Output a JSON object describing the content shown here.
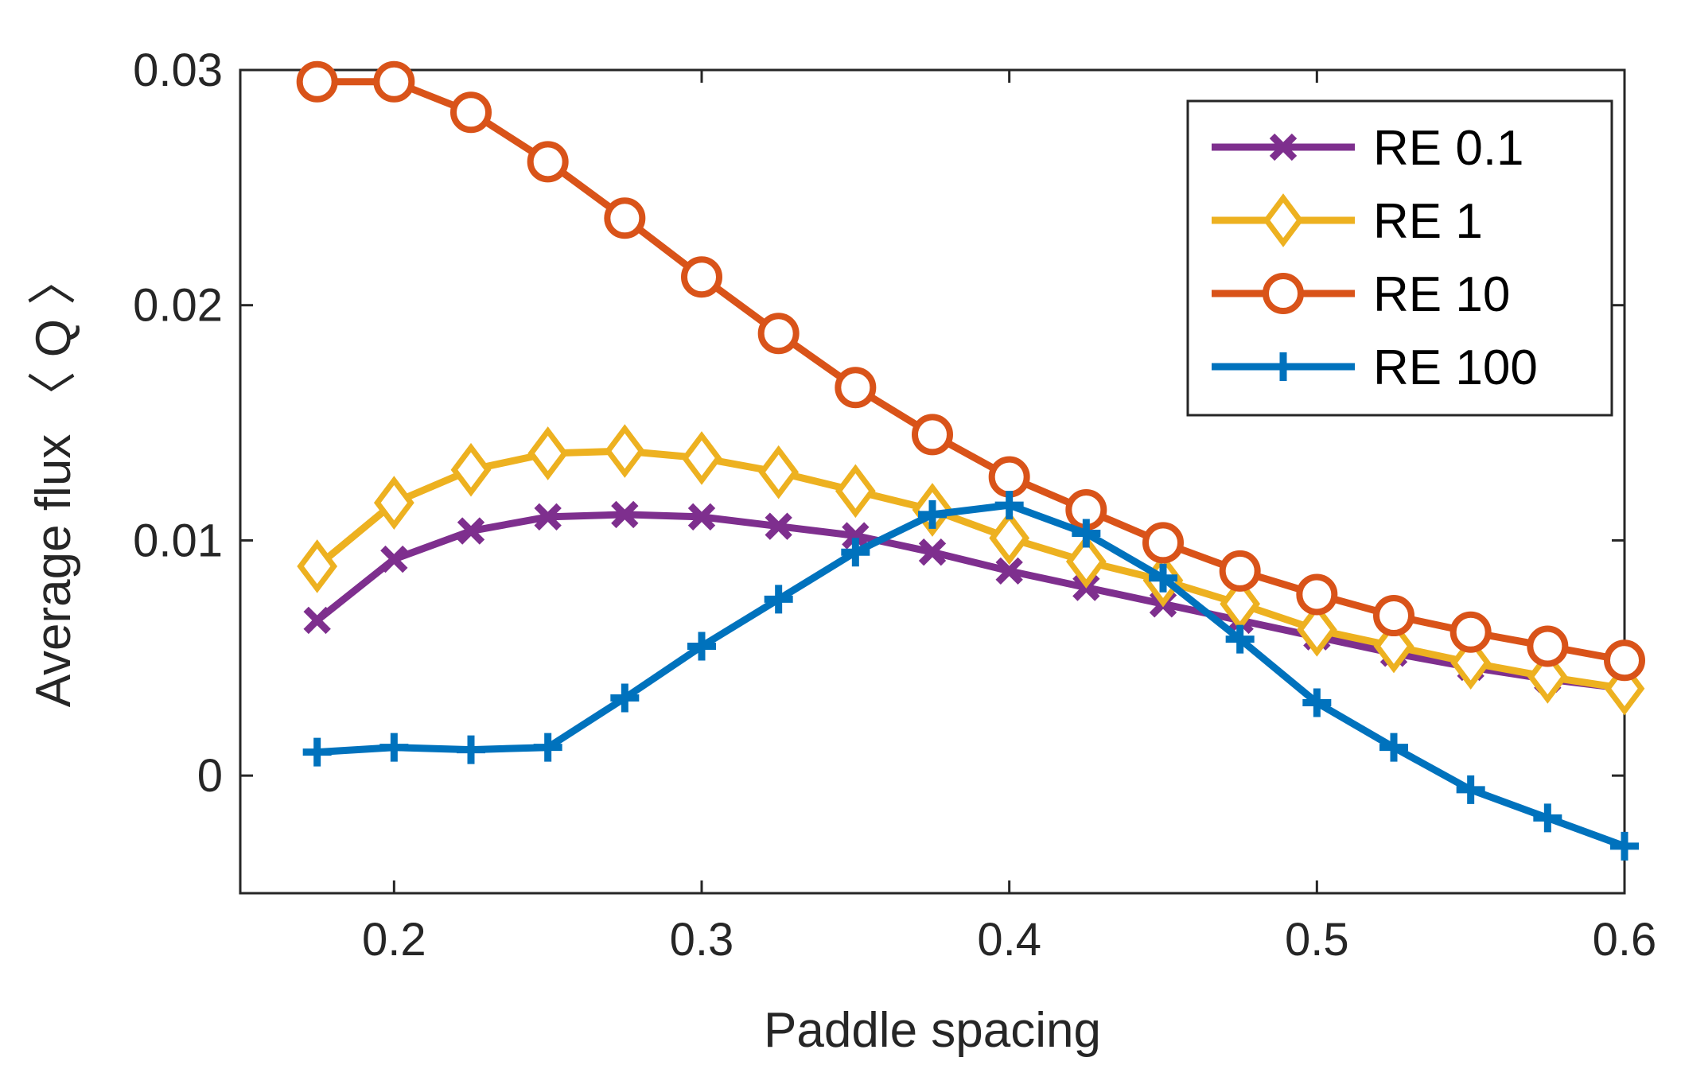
{
  "chart_data": {
    "type": "line",
    "title": "",
    "xlabel": "Paddle spacing",
    "ylabel": "Average flux 〈 Q 〉",
    "xlim": [
      0.15,
      0.6
    ],
    "ylim": [
      -0.005,
      0.03
    ],
    "xticks": [
      0.2,
      0.3,
      0.4,
      0.5,
      0.6
    ],
    "xtick_labels": [
      "0.2",
      "0.3",
      "0.4",
      "0.5",
      "0.6"
    ],
    "yticks": [
      0,
      0.01,
      0.02,
      0.03
    ],
    "ytick_labels": [
      "0",
      "0.01",
      "0.02",
      "0.03"
    ],
    "grid": false,
    "legend_position": "top-right",
    "x": [
      0.175,
      0.2,
      0.225,
      0.25,
      0.275,
      0.3,
      0.325,
      0.35,
      0.375,
      0.4,
      0.425,
      0.45,
      0.475,
      0.5,
      0.525,
      0.55,
      0.575,
      0.6
    ],
    "series": [
      {
        "name": "RE 0.1",
        "color": "#7E2F8E",
        "marker": "x",
        "values": [
          0.0066,
          0.0092,
          0.0104,
          0.011,
          0.0111,
          0.011,
          0.0106,
          0.0102,
          0.0095,
          0.0087,
          0.008,
          0.0073,
          0.0066,
          0.0059,
          0.0052,
          0.0046,
          0.0041,
          0.0037
        ]
      },
      {
        "name": "RE 1",
        "color": "#EDB120",
        "marker": "diamond",
        "values": [
          0.0089,
          0.0116,
          0.013,
          0.0137,
          0.0138,
          0.0135,
          0.0129,
          0.0121,
          0.0113,
          0.0101,
          0.0091,
          0.0083,
          0.0073,
          0.0062,
          0.0055,
          0.0048,
          0.0042,
          0.0037
        ]
      },
      {
        "name": "RE 10",
        "color": "#D95319",
        "marker": "circle",
        "values": [
          0.0295,
          0.0295,
          0.0282,
          0.0261,
          0.0237,
          0.0212,
          0.0188,
          0.0165,
          0.0145,
          0.0127,
          0.0113,
          0.0099,
          0.0087,
          0.0077,
          0.0068,
          0.0061,
          0.0055,
          0.0049
        ]
      },
      {
        "name": "RE 100",
        "color": "#0072BD",
        "marker": "plus",
        "values": [
          0.001,
          0.0012,
          0.0011,
          0.0012,
          0.0033,
          0.0055,
          0.0075,
          0.0095,
          0.0111,
          0.0115,
          0.0103,
          0.0084,
          0.0058,
          0.0031,
          0.0012,
          -0.0006,
          -0.0018,
          -0.003
        ]
      }
    ]
  }
}
